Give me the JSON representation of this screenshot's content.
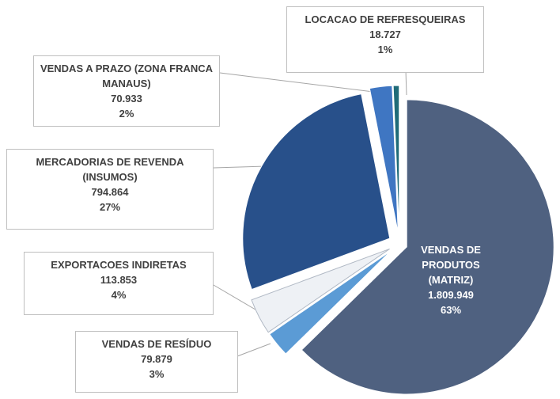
{
  "chart_data": {
    "type": "pie",
    "categories": [
      "VENDAS DE PRODUTOS (MATRIZ)",
      "VENDAS DE RESÍDUO",
      "EXPORTACOES INDIRETAS",
      "MERCADORIAS DE REVENDA (INSUMOS)",
      "VENDAS A PRAZO (ZONA FRANCA MANAUS)",
      "LOCACAO DE REFRESQUEIRAS"
    ],
    "values": [
      1809949,
      79879,
      113853,
      794864,
      70933,
      18727
    ],
    "value_labels": [
      "1.809.949",
      "79.879",
      "113.853",
      "794.864",
      "70.933",
      "18.727"
    ],
    "percent_labels": [
      "63%",
      "3%",
      "4%",
      "27%",
      "2%",
      "1%"
    ],
    "colors": [
      "#4f6180",
      "#5b9bd5",
      "#eef1f5",
      "#28508a",
      "#3f76c2",
      "#1f6b78"
    ]
  }
}
